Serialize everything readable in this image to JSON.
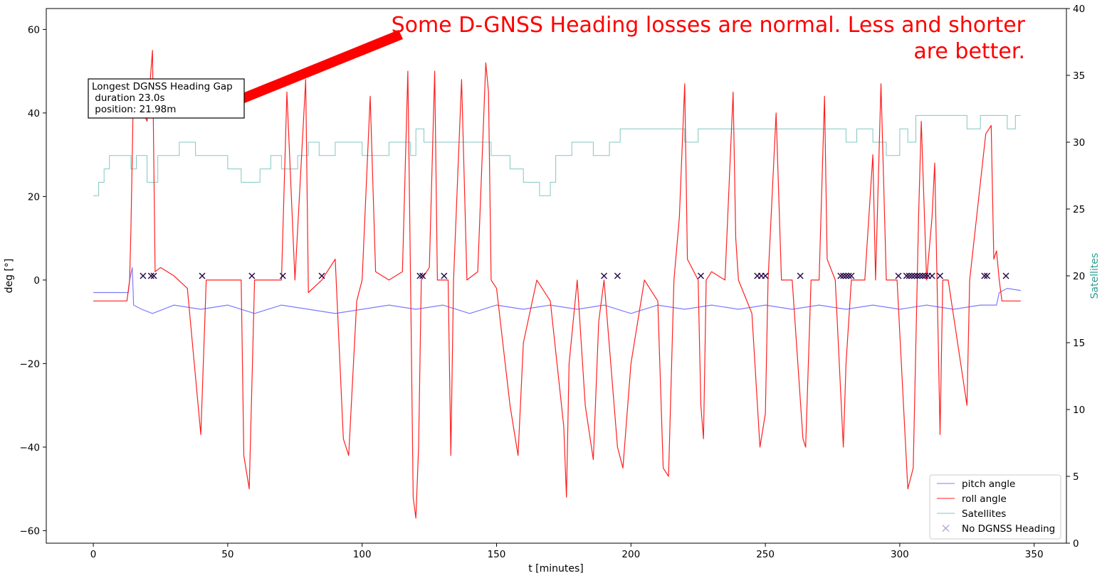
{
  "chart_data": {
    "type": "line",
    "title": "",
    "xlabel": "t [minutes]",
    "ylabel": "deg [°]",
    "y2label": "Satellites",
    "xlim": [
      -17.5,
      362
    ],
    "ylim": [
      -63,
      65
    ],
    "y2lim": [
      0,
      40
    ],
    "xticks": [
      0,
      50,
      100,
      150,
      200,
      250,
      300,
      350
    ],
    "yticks": [
      -60,
      -40,
      -20,
      0,
      20,
      40,
      60
    ],
    "y2ticks": [
      0,
      5,
      10,
      15,
      20,
      25,
      30,
      35,
      40
    ],
    "grid": false,
    "legend_position": "lower-right",
    "series": [
      {
        "name": "pitch angle",
        "color": "#7b7bff",
        "axis": "left",
        "points": [
          [
            0,
            -3
          ],
          [
            13,
            -3
          ],
          [
            13.5,
            0
          ],
          [
            14.5,
            3
          ],
          [
            15,
            -6
          ],
          [
            18,
            -7
          ],
          [
            22,
            -8
          ],
          [
            30,
            -6
          ],
          [
            40,
            -7
          ],
          [
            50,
            -6
          ],
          [
            60,
            -8
          ],
          [
            70,
            -6
          ],
          [
            80,
            -7
          ],
          [
            90,
            -8
          ],
          [
            100,
            -7
          ],
          [
            110,
            -6
          ],
          [
            120,
            -7
          ],
          [
            130,
            -6
          ],
          [
            140,
            -8
          ],
          [
            150,
            -6
          ],
          [
            160,
            -7
          ],
          [
            170,
            -6
          ],
          [
            180,
            -7
          ],
          [
            190,
            -6
          ],
          [
            200,
            -8
          ],
          [
            210,
            -6
          ],
          [
            220,
            -7
          ],
          [
            230,
            -6
          ],
          [
            240,
            -7
          ],
          [
            250,
            -6
          ],
          [
            260,
            -7
          ],
          [
            270,
            -6
          ],
          [
            280,
            -7
          ],
          [
            290,
            -6
          ],
          [
            300,
            -7
          ],
          [
            310,
            -6
          ],
          [
            320,
            -7
          ],
          [
            330,
            -6
          ],
          [
            336,
            -6
          ],
          [
            337,
            -3
          ],
          [
            340,
            -2
          ],
          [
            345,
            -2.5
          ]
        ]
      },
      {
        "name": "roll angle",
        "color": "#ff1f1f",
        "axis": "left",
        "points": [
          [
            0,
            -5
          ],
          [
            12.5,
            -5
          ],
          [
            13.5,
            0
          ],
          [
            14,
            12
          ],
          [
            15,
            48
          ],
          [
            17,
            42
          ],
          [
            20,
            38
          ],
          [
            22,
            55
          ],
          [
            23,
            2
          ],
          [
            25,
            3
          ],
          [
            30,
            1
          ],
          [
            35,
            -2
          ],
          [
            40,
            -37
          ],
          [
            42,
            0
          ],
          [
            55,
            0
          ],
          [
            56,
            -42
          ],
          [
            58,
            -50
          ],
          [
            60,
            0
          ],
          [
            70,
            0
          ],
          [
            72,
            45
          ],
          [
            75,
            0
          ],
          [
            79,
            48
          ],
          [
            80,
            -3
          ],
          [
            85,
            0
          ],
          [
            90,
            5
          ],
          [
            93,
            -38
          ],
          [
            95,
            -42
          ],
          [
            98,
            -5
          ],
          [
            100,
            0
          ],
          [
            103,
            44
          ],
          [
            105,
            2
          ],
          [
            110,
            0
          ],
          [
            115,
            2
          ],
          [
            117,
            50
          ],
          [
            118,
            0
          ],
          [
            119,
            -52
          ],
          [
            120,
            -57
          ],
          [
            121,
            -40
          ],
          [
            122,
            0
          ],
          [
            125,
            3
          ],
          [
            127,
            50
          ],
          [
            128,
            0
          ],
          [
            132,
            0
          ],
          [
            133,
            -42
          ],
          [
            134,
            0
          ],
          [
            137,
            48
          ],
          [
            139,
            0
          ],
          [
            143,
            2
          ],
          [
            146,
            52
          ],
          [
            147,
            45
          ],
          [
            148,
            0
          ],
          [
            150,
            -2
          ],
          [
            155,
            -30
          ],
          [
            158,
            -42
          ],
          [
            160,
            -15
          ],
          [
            165,
            0
          ],
          [
            170,
            -5
          ],
          [
            175,
            -35
          ],
          [
            176,
            -52
          ],
          [
            177,
            -20
          ],
          [
            180,
            0
          ],
          [
            183,
            -30
          ],
          [
            186,
            -43
          ],
          [
            188,
            -10
          ],
          [
            190,
            0
          ],
          [
            195,
            -40
          ],
          [
            197,
            -45
          ],
          [
            200,
            -20
          ],
          [
            205,
            0
          ],
          [
            210,
            -5
          ],
          [
            212,
            -45
          ],
          [
            214,
            -47
          ],
          [
            216,
            0
          ],
          [
            218,
            15
          ],
          [
            220,
            47
          ],
          [
            221,
            5
          ],
          [
            225,
            0
          ],
          [
            226,
            -30
          ],
          [
            227,
            -38
          ],
          [
            228,
            0
          ],
          [
            230,
            2
          ],
          [
            235,
            0
          ],
          [
            238,
            45
          ],
          [
            239,
            10
          ],
          [
            240,
            0
          ],
          [
            245,
            -8
          ],
          [
            248,
            -40
          ],
          [
            250,
            -32
          ],
          [
            251,
            0
          ],
          [
            254,
            40
          ],
          [
            256,
            0
          ],
          [
            260,
            0
          ],
          [
            264,
            -38
          ],
          [
            265,
            -40
          ],
          [
            267,
            0
          ],
          [
            270,
            0
          ],
          [
            272,
            44
          ],
          [
            273,
            5
          ],
          [
            276,
            0
          ],
          [
            279,
            -40
          ],
          [
            280,
            -20
          ],
          [
            282,
            0
          ],
          [
            287,
            0
          ],
          [
            290,
            30
          ],
          [
            291,
            0
          ],
          [
            293,
            47
          ],
          [
            295,
            0
          ],
          [
            299,
            0
          ],
          [
            303,
            -50
          ],
          [
            305,
            -45
          ],
          [
            307,
            15
          ],
          [
            308,
            38
          ],
          [
            310,
            0
          ],
          [
            312,
            15
          ],
          [
            313,
            28
          ],
          [
            315,
            -37
          ],
          [
            316,
            0
          ],
          [
            318,
            0
          ],
          [
            325,
            -30
          ],
          [
            326,
            0
          ],
          [
            332,
            35
          ],
          [
            334,
            37
          ],
          [
            335,
            5
          ],
          [
            336,
            7
          ],
          [
            337,
            0
          ],
          [
            338,
            -5
          ],
          [
            345,
            -5
          ]
        ]
      },
      {
        "name": "Satellites",
        "color": "#80c7c1",
        "axis": "right",
        "points": [
          [
            0,
            26
          ],
          [
            2,
            27
          ],
          [
            4,
            28
          ],
          [
            6,
            29
          ],
          [
            10,
            29
          ],
          [
            14,
            28
          ],
          [
            16,
            29
          ],
          [
            20,
            27
          ],
          [
            24,
            29
          ],
          [
            30,
            29
          ],
          [
            32,
            30
          ],
          [
            38,
            29
          ],
          [
            45,
            29
          ],
          [
            50,
            28
          ],
          [
            55,
            27
          ],
          [
            62,
            28
          ],
          [
            66,
            29
          ],
          [
            70,
            28
          ],
          [
            76,
            29
          ],
          [
            80,
            30
          ],
          [
            84,
            29
          ],
          [
            90,
            30
          ],
          [
            100,
            29
          ],
          [
            110,
            30
          ],
          [
            118,
            29
          ],
          [
            120,
            31
          ],
          [
            123,
            30
          ],
          [
            130,
            30
          ],
          [
            140,
            30
          ],
          [
            148,
            29
          ],
          [
            155,
            28
          ],
          [
            160,
            27
          ],
          [
            166,
            26
          ],
          [
            170,
            27
          ],
          [
            172,
            29
          ],
          [
            178,
            30
          ],
          [
            186,
            29
          ],
          [
            192,
            30
          ],
          [
            196,
            31
          ],
          [
            200,
            31
          ],
          [
            208,
            31
          ],
          [
            215,
            31
          ],
          [
            220,
            30
          ],
          [
            225,
            31
          ],
          [
            240,
            31
          ],
          [
            250,
            31
          ],
          [
            260,
            31
          ],
          [
            270,
            31
          ],
          [
            276,
            31
          ],
          [
            280,
            30
          ],
          [
            284,
            31
          ],
          [
            290,
            30
          ],
          [
            295,
            29
          ],
          [
            300,
            31
          ],
          [
            303,
            30
          ],
          [
            306,
            32
          ],
          [
            315,
            32
          ],
          [
            320,
            32
          ],
          [
            325,
            31
          ],
          [
            330,
            32
          ],
          [
            336,
            32
          ],
          [
            340,
            31
          ],
          [
            343,
            32
          ],
          [
            345,
            32
          ]
        ]
      },
      {
        "name": "No DGNSS Heading",
        "color": "#2a0a4a",
        "axis": "left",
        "marker": "x",
        "points": [
          [
            18.5,
            1
          ],
          [
            21.5,
            1
          ],
          [
            22.5,
            1
          ],
          [
            40.5,
            1
          ],
          [
            59,
            1
          ],
          [
            70.5,
            1
          ],
          [
            85,
            1
          ],
          [
            121.5,
            1
          ],
          [
            122.5,
            1
          ],
          [
            130.5,
            1
          ],
          [
            190,
            1
          ],
          [
            195,
            1
          ],
          [
            226,
            1
          ],
          [
            247,
            1
          ],
          [
            248.5,
            1
          ],
          [
            250,
            1
          ],
          [
            263,
            1
          ],
          [
            278,
            1
          ],
          [
            279,
            1
          ],
          [
            280,
            1
          ],
          [
            281,
            1
          ],
          [
            282,
            1
          ],
          [
            299.5,
            1
          ],
          [
            302.5,
            1
          ],
          [
            303.5,
            1
          ],
          [
            304.5,
            1
          ],
          [
            305.5,
            1
          ],
          [
            306.5,
            1
          ],
          [
            307.5,
            1
          ],
          [
            308.5,
            1
          ],
          [
            309.5,
            1
          ],
          [
            310.5,
            1
          ],
          [
            312,
            1
          ],
          [
            315,
            1
          ],
          [
            331.5,
            1
          ],
          [
            332.5,
            1
          ],
          [
            339.5,
            1
          ]
        ]
      }
    ],
    "annotation_box": {
      "lines": [
        "Longest DGNSS Heading Gap",
        " duration 23.0s",
        " position: 21.98m"
      ]
    },
    "callout": {
      "lines": [
        "Some D-GNSS Heading losses are normal. Less and shorter",
        "are better."
      ],
      "color": "#ff0000"
    }
  }
}
